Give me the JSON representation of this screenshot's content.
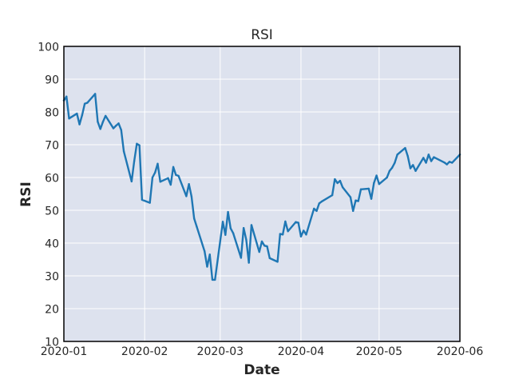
{
  "chart_data": {
    "type": "line",
    "title": "RSI",
    "xlabel": "Date",
    "ylabel": "RSI",
    "xlim": [
      "2020-01-01",
      "2020-06-01"
    ],
    "ylim": [
      10,
      100
    ],
    "x_ticks": [
      "2020-01",
      "2020-02",
      "2020-03",
      "2020-04",
      "2020-05",
      "2020-06"
    ],
    "y_ticks": [
      10,
      20,
      30,
      40,
      50,
      60,
      70,
      80,
      90,
      100
    ],
    "grid": true,
    "colors": {
      "background": "#dde2ee",
      "line": "#1f77b4",
      "grid": "#ffffff",
      "frame": "#000000"
    },
    "series": [
      {
        "x": [
          "2020-01-01",
          "2020-01-02",
          "2020-01-03",
          "2020-01-06",
          "2020-01-07",
          "2020-01-08",
          "2020-01-09",
          "2020-01-10",
          "2020-01-13",
          "2020-01-14",
          "2020-01-15",
          "2020-01-16",
          "2020-01-17",
          "2020-01-20",
          "2020-01-21",
          "2020-01-22",
          "2020-01-23",
          "2020-01-24",
          "2020-01-27",
          "2020-01-28",
          "2020-01-29",
          "2020-01-30",
          "2020-01-31",
          "2020-02-03",
          "2020-02-04",
          "2020-02-05",
          "2020-02-06",
          "2020-02-07",
          "2020-02-10",
          "2020-02-11",
          "2020-02-12",
          "2020-02-13",
          "2020-02-14",
          "2020-02-17",
          "2020-02-18",
          "2020-02-19",
          "2020-02-20",
          "2020-02-21",
          "2020-02-24",
          "2020-02-25",
          "2020-02-26",
          "2020-02-27",
          "2020-02-28",
          "2020-03-02",
          "2020-03-03",
          "2020-03-04",
          "2020-03-05",
          "2020-03-06",
          "2020-03-09",
          "2020-03-10",
          "2020-03-11",
          "2020-03-12",
          "2020-03-13",
          "2020-03-16",
          "2020-03-17",
          "2020-03-18",
          "2020-03-19",
          "2020-03-20",
          "2020-03-23",
          "2020-03-24",
          "2020-03-25",
          "2020-03-26",
          "2020-03-27",
          "2020-03-30",
          "2020-03-31",
          "2020-04-01",
          "2020-04-02",
          "2020-04-03",
          "2020-04-06",
          "2020-04-07",
          "2020-04-08",
          "2020-04-09",
          "2020-04-13",
          "2020-04-14",
          "2020-04-15",
          "2020-04-16",
          "2020-04-17",
          "2020-04-20",
          "2020-04-21",
          "2020-04-22",
          "2020-04-23",
          "2020-04-24",
          "2020-04-27",
          "2020-04-28",
          "2020-04-29",
          "2020-04-30",
          "2020-05-01",
          "2020-05-04",
          "2020-05-05",
          "2020-05-06",
          "2020-05-07",
          "2020-05-08",
          "2020-05-11",
          "2020-05-12",
          "2020-05-13",
          "2020-05-14",
          "2020-05-15",
          "2020-05-18",
          "2020-05-19",
          "2020-05-20",
          "2020-05-21",
          "2020-05-22",
          "2020-05-26",
          "2020-05-27",
          "2020-05-28",
          "2020-05-29",
          "2020-06-01"
        ],
        "values": [
          83.5,
          84.7,
          78.0,
          79.5,
          76.2,
          79.0,
          82.5,
          82.8,
          85.5,
          77.0,
          74.8,
          77.0,
          78.8,
          75.0,
          75.8,
          76.5,
          74.5,
          68.0,
          58.8,
          65.0,
          70.3,
          69.8,
          53.2,
          52.3,
          60.0,
          61.5,
          64.2,
          58.7,
          59.8,
          57.8,
          63.2,
          60.8,
          60.5,
          54.3,
          58.0,
          54.2,
          47.5,
          45.0,
          37.5,
          32.8,
          36.5,
          28.8,
          28.8,
          46.5,
          42.5,
          49.5,
          44.5,
          43.0,
          35.5,
          44.6,
          41.0,
          34.0,
          45.5,
          37.3,
          40.5,
          39.2,
          39.0,
          35.4,
          34.3,
          42.8,
          42.6,
          46.6,
          43.6,
          46.4,
          46.2,
          42.0,
          43.8,
          42.6,
          50.5,
          49.8,
          52.1,
          52.7,
          54.6,
          59.5,
          58.3,
          59.0,
          57.0,
          54.0,
          49.8,
          53.0,
          52.8,
          56.4,
          56.6,
          53.5,
          58.3,
          60.6,
          58.0,
          60.0,
          62.0,
          63.0,
          64.5,
          67.0,
          69.0,
          66.5,
          62.8,
          63.8,
          62.0,
          66.0,
          64.5,
          67.0,
          65.0,
          66.2,
          64.6,
          64.0,
          64.8,
          64.5,
          67.0
        ]
      }
    ]
  }
}
